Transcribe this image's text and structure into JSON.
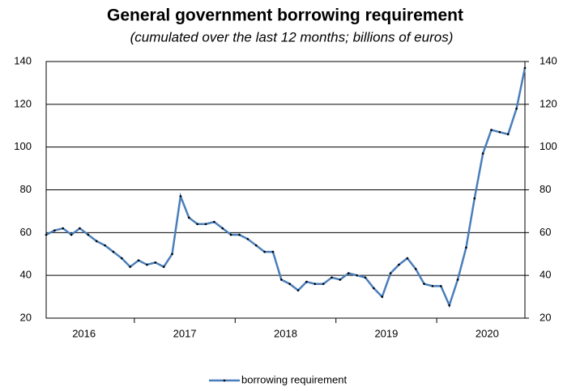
{
  "chart_data": {
    "type": "line",
    "title": "General government borrowing requirement",
    "subtitle": "(cumulated over the last 12 months; billions of euros)",
    "categories": [
      null,
      null,
      null,
      null,
      null,
      "2016",
      null,
      null,
      null,
      null,
      null,
      null,
      null,
      null,
      null,
      null,
      null,
      "2017",
      null,
      null,
      null,
      null,
      null,
      null,
      null,
      null,
      null,
      null,
      null,
      "2018",
      null,
      null,
      null,
      null,
      null,
      null,
      null,
      null,
      null,
      null,
      null,
      "2019",
      null,
      null,
      null,
      null,
      null,
      null,
      null,
      null,
      null,
      null,
      null,
      "2020",
      null,
      null,
      null,
      null
    ],
    "series": [
      {
        "name": "borrowing requirement",
        "color": "#4a7ebb",
        "values": [
          59,
          61,
          62,
          59,
          62,
          59,
          56,
          54,
          51,
          48,
          44,
          47,
          45,
          46,
          44,
          50,
          77,
          67,
          64,
          64,
          65,
          62,
          59,
          59,
          57,
          54,
          51,
          51,
          38,
          36,
          33,
          37,
          36,
          36,
          39,
          38,
          41,
          40,
          39,
          34,
          30,
          41,
          45,
          48,
          43,
          36,
          35,
          35,
          26,
          38,
          53,
          76,
          97,
          108,
          107,
          106,
          118,
          137
        ]
      }
    ],
    "ylim": [
      20,
      140
    ],
    "yticks": [
      20,
      40,
      60,
      80,
      100,
      120,
      140
    ],
    "y2lim": [
      20,
      140
    ],
    "y2ticks": [
      20,
      40,
      60,
      80,
      100,
      120,
      140
    ],
    "grid": true,
    "legend": "bottom"
  }
}
